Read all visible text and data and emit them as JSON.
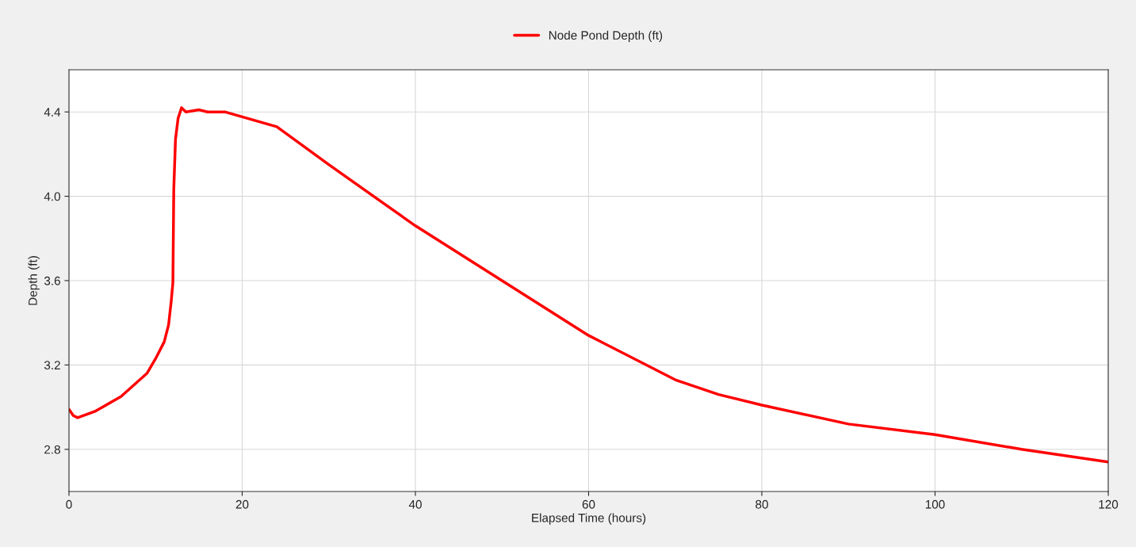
{
  "chart_data": {
    "type": "line",
    "xlabel": "Elapsed Time (hours)",
    "ylabel": "Depth (ft)",
    "xlim": [
      0,
      120
    ],
    "xticks": [
      0,
      20,
      40,
      60,
      80,
      100,
      120
    ],
    "ylim": [
      2.6,
      4.6
    ],
    "yticks": [
      {
        "value": 2.8,
        "label": "2.8"
      },
      {
        "value": 3.2,
        "label": "3.2"
      },
      {
        "value": 3.6,
        "label": "3.6"
      },
      {
        "value": 4.0,
        "label": "4.0"
      },
      {
        "value": 4.4,
        "label": "4.4"
      }
    ],
    "grid": true,
    "legend": "top",
    "marker": "none",
    "line_style": "solid",
    "series": [
      {
        "name": "Node Pond Depth (ft)",
        "color": "#ff0000",
        "x": [
          0,
          0.5,
          1,
          3,
          6,
          9,
          10,
          11,
          11.5,
          11.8,
          12,
          12.1,
          12.3,
          12.6,
          13,
          13.5,
          15,
          16,
          18,
          24,
          30,
          40,
          50,
          60,
          70,
          75,
          80,
          90,
          100,
          110,
          120
        ],
        "values": [
          2.99,
          2.96,
          2.95,
          2.98,
          3.05,
          3.16,
          3.23,
          3.31,
          3.39,
          3.5,
          3.59,
          4.03,
          4.27,
          4.37,
          4.42,
          4.4,
          4.41,
          4.4,
          4.4,
          4.33,
          4.15,
          3.86,
          3.6,
          3.34,
          3.13,
          3.06,
          3.01,
          2.92,
          2.87,
          2.8,
          2.74
        ]
      }
    ]
  }
}
